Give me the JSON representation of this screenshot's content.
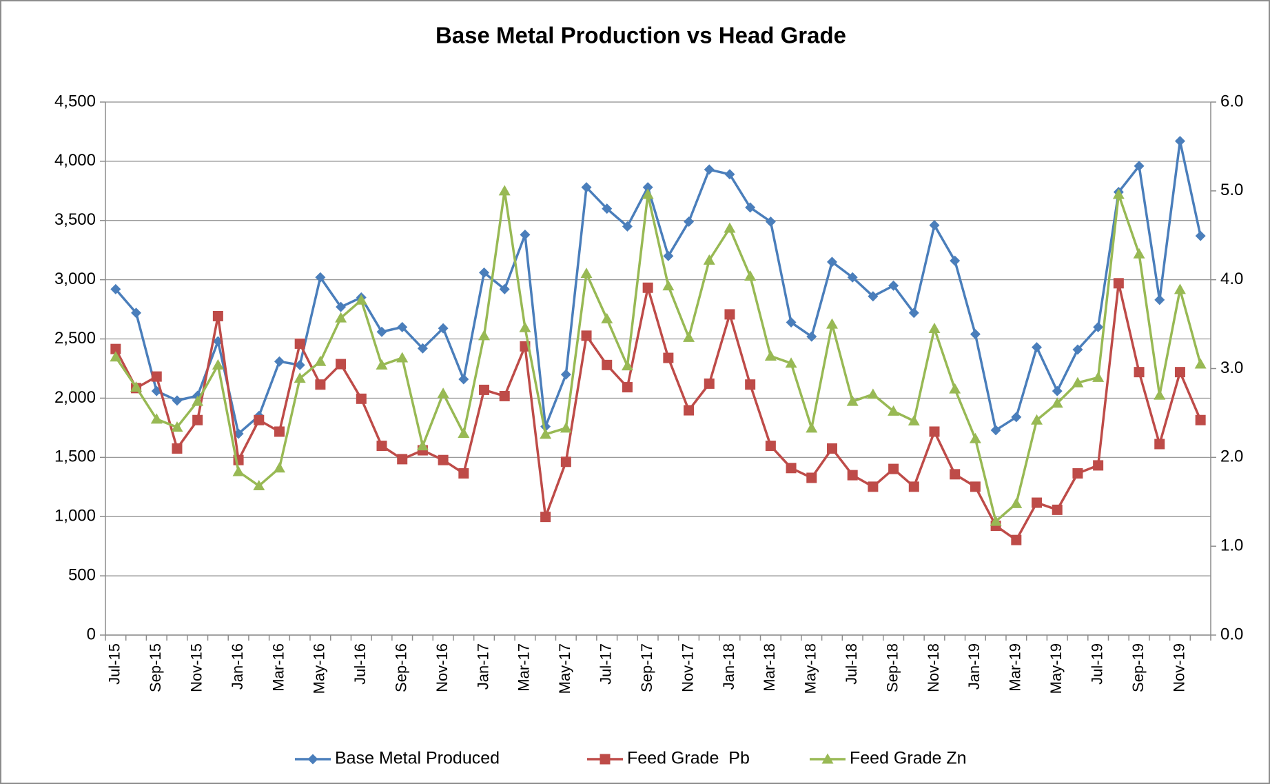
{
  "chart_data": {
    "type": "line",
    "title": "Base Metal Production vs Head Grade",
    "categories": [
      "Jul-15",
      null,
      "Sep-15",
      null,
      "Nov-15",
      null,
      "Jan-16",
      null,
      "Mar-16",
      null,
      "May-16",
      null,
      "Jul-16",
      null,
      "Sep-16",
      null,
      "Nov-16",
      null,
      "Jan-17",
      null,
      "Mar-17",
      null,
      "May-17",
      null,
      "Jul-17",
      null,
      "Sep-17",
      null,
      "Nov-17",
      null,
      "Jan-18",
      null,
      "Mar-18",
      null,
      "May-18",
      null,
      "Jul-18",
      null,
      "Sep-18",
      null,
      "Nov-18",
      null,
      "Jan-19",
      null,
      "Mar-19",
      null,
      "May-19",
      null,
      "Jul-19",
      null,
      "Sep-19",
      null,
      "Nov-19",
      null
    ],
    "series": [
      {
        "name": "Base Metal Produced",
        "color": "#4a7ebb",
        "marker": "diamond",
        "axis": "y",
        "values": [
          2920,
          2720,
          2060,
          1980,
          2020,
          2480,
          1700,
          1850,
          2310,
          2280,
          3020,
          2770,
          2850,
          2560,
          2600,
          2420,
          2590,
          2160,
          3060,
          2920,
          3380,
          1760,
          2200,
          3780,
          3600,
          3450,
          3780,
          3200,
          3490,
          3930,
          3890,
          3610,
          3490,
          2640,
          2520,
          3150,
          3020,
          2860,
          2950,
          2720,
          3460,
          3160,
          2540,
          1730,
          1840,
          2430,
          2060,
          2410,
          2600,
          3740,
          3960,
          2830,
          4170,
          3370
        ]
      },
      {
        "name": "Feed Grade  Pb",
        "color": "#be4b48",
        "marker": "square",
        "axis": "y2",
        "values": [
          3.22,
          2.78,
          2.91,
          2.1,
          2.42,
          3.59,
          1.97,
          2.42,
          2.29,
          3.28,
          2.82,
          3.05,
          2.66,
          2.13,
          1.98,
          2.08,
          1.97,
          1.82,
          2.76,
          2.69,
          3.25,
          1.33,
          1.95,
          3.37,
          3.04,
          2.79,
          3.91,
          3.12,
          2.53,
          2.83,
          3.61,
          2.82,
          2.13,
          1.88,
          1.77,
          2.1,
          1.8,
          1.67,
          1.87,
          1.67,
          2.29,
          1.81,
          1.67,
          1.23,
          1.07,
          1.49,
          1.41,
          1.82,
          1.91,
          3.96,
          2.96,
          2.15,
          2.96,
          2.42
        ]
      },
      {
        "name": "Feed Grade Zn",
        "color": "#98b954",
        "marker": "triangle",
        "axis": "y2",
        "values": [
          3.13,
          2.79,
          2.43,
          2.34,
          2.63,
          3.04,
          1.84,
          1.68,
          1.88,
          2.89,
          3.08,
          3.57,
          3.77,
          3.04,
          3.12,
          2.13,
          2.72,
          2.27,
          3.37,
          5.0,
          3.46,
          2.26,
          2.33,
          4.07,
          3.56,
          3.03,
          4.96,
          3.93,
          3.35,
          4.22,
          4.58,
          4.04,
          3.14,
          3.06,
          2.33,
          3.5,
          2.63,
          2.71,
          2.52,
          2.41,
          3.45,
          2.77,
          2.21,
          1.28,
          1.48,
          2.42,
          2.61,
          2.84,
          2.9,
          4.96,
          4.29,
          2.7,
          3.89,
          3.05
        ]
      }
    ],
    "ylim": [
      0,
      4500
    ],
    "yticks": [
      0,
      500,
      {
        "value": 1000,
        "label": "1,000"
      },
      {
        "value": 1500,
        "label": "1,500"
      },
      {
        "value": 2000,
        "label": "2,000"
      },
      {
        "value": 2500,
        "label": "2,500"
      },
      {
        "value": 3000,
        "label": "3,000"
      },
      {
        "value": 3500,
        "label": "3,500"
      },
      {
        "value": 4000,
        "label": "4,000"
      },
      {
        "value": 4500,
        "label": "4,500"
      }
    ],
    "y2lim": [
      0,
      6
    ],
    "y2ticks": [
      {
        "value": 0,
        "label": "0.0"
      },
      {
        "value": 1,
        "label": "1.0"
      },
      {
        "value": 2,
        "label": "2.0"
      },
      {
        "value": 3,
        "label": "3.0"
      },
      {
        "value": 4,
        "label": "4.0"
      },
      {
        "value": 5,
        "label": "5.0"
      },
      {
        "value": 6,
        "label": "6.0"
      }
    ],
    "grid": true,
    "legend": "bottom"
  }
}
